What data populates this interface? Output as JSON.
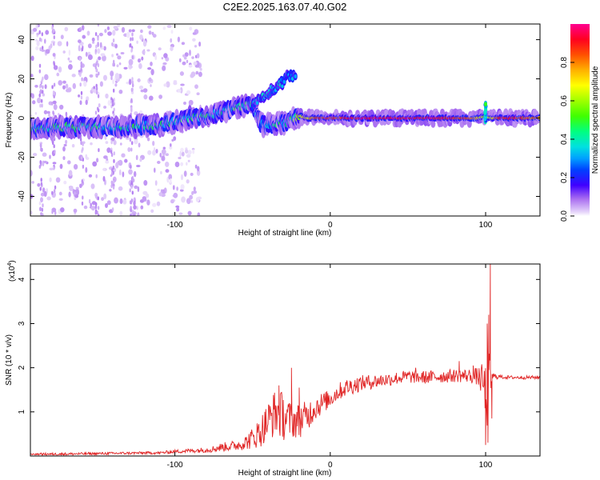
{
  "figure": {
    "title": "C2E2.2025.163.07.40.G02"
  },
  "chart_data": [
    {
      "type": "heatmap",
      "xlabel": "Height of straight line (km)",
      "ylabel": "Frequency (Hz)",
      "xlim": [
        -193,
        135
      ],
      "ylim": [
        -50,
        48
      ],
      "x_ticks": [
        -100,
        0,
        100
      ],
      "x_tick_labels": [
        "-100",
        "0",
        "100"
      ],
      "y_ticks": [
        -40,
        -20,
        0,
        20,
        40
      ],
      "y_tick_labels": [
        "-40",
        "-20",
        "0",
        "20",
        "40"
      ],
      "grid": false,
      "colorbar": {
        "label": "Normalized spectral amplitude",
        "range": [
          0,
          1
        ],
        "ticks": [
          0.0,
          0.2,
          0.4,
          0.6,
          0.8
        ],
        "tick_labels": [
          "0.0",
          "0.2",
          "0.4",
          "0.6",
          "0.8"
        ]
      },
      "ridge": {
        "x": [
          -193,
          -180,
          -160,
          -140,
          -120,
          -110,
          -100,
          -90,
          -80,
          -70,
          -62,
          -55,
          -50,
          -46,
          -43,
          -40,
          -36,
          -33,
          -30,
          -25,
          -22,
          -20,
          -15,
          -10,
          -5,
          0,
          10,
          20,
          40,
          60,
          80,
          90,
          96,
          100,
          104,
          110,
          120,
          135
        ],
        "y": [
          -5,
          -5,
          -4.5,
          -4.5,
          -4,
          -3.5,
          -2,
          0,
          1.5,
          3,
          5,
          6,
          7,
          -1,
          -4,
          -3,
          -3,
          -2,
          -3,
          -1,
          0,
          1,
          0,
          0,
          0,
          0,
          0,
          0,
          0,
          0,
          0,
          0,
          0,
          1,
          0,
          0,
          0,
          0
        ],
        "amplitude": [
          0.45,
          0.5,
          0.5,
          0.45,
          0.45,
          0.5,
          0.4,
          0.45,
          0.5,
          0.45,
          0.45,
          0.5,
          0.45,
          0.35,
          0.3,
          0.35,
          0.4,
          0.45,
          0.45,
          0.55,
          0.6,
          0.7,
          0.7,
          0.85,
          0.9,
          0.85,
          0.9,
          0.95,
          0.95,
          0.95,
          0.9,
          0.85,
          0.7,
          0.6,
          0.7,
          0.9,
          0.9,
          0.8
        ]
      },
      "branch": {
        "x": [
          -50,
          -46,
          -42,
          -38,
          -35,
          -32,
          -30,
          -28,
          -26,
          -24,
          -22
        ],
        "y": [
          7,
          10,
          12,
          14,
          14,
          18,
          18,
          21,
          22,
          22,
          23
        ],
        "amplitude": [
          0.3,
          0.3,
          0.35,
          0.3,
          0.3,
          0.35,
          0.3,
          0.3,
          0.35,
          0.3,
          0.3
        ]
      },
      "spike": {
        "x": 100,
        "y_range": [
          -2,
          8
        ],
        "amplitude": 0.5
      }
    },
    {
      "type": "line",
      "xlabel": "Height of straight line (km)",
      "ylabel": "SNR (10 * v/v)",
      "y_multiplier": "(x10",
      "y_multiplier_exp": "4",
      "y_multiplier_close": ")",
      "xlim": [
        -193,
        135
      ],
      "ylim": [
        0,
        4.35
      ],
      "x_ticks": [
        -100,
        0,
        100
      ],
      "x_tick_labels": [
        "-100",
        "0",
        "100"
      ],
      "y_ticks": [
        1,
        2,
        3,
        4
      ],
      "y_tick_labels": [
        "1",
        "2",
        "3",
        "4"
      ],
      "grid": false,
      "series": [
        {
          "color": "#e02525",
          "x": [
            -193,
            -180,
            -160,
            -140,
            -120,
            -110,
            -100,
            -90,
            -80,
            -75,
            -70,
            -60,
            -55,
            -50,
            -45,
            -40,
            -35,
            -30,
            -25,
            -20,
            -15,
            -10,
            -5,
            0,
            5,
            10,
            20,
            30,
            40,
            50,
            60,
            70,
            80,
            90,
            95,
            98,
            100,
            102,
            104,
            108,
            115,
            125,
            135
          ],
          "y": [
            0.04,
            0.04,
            0.05,
            0.06,
            0.07,
            0.07,
            0.1,
            0.12,
            0.14,
            0.16,
            0.2,
            0.24,
            0.3,
            0.4,
            0.55,
            0.8,
            1.0,
            0.9,
            0.8,
            0.8,
            0.9,
            1.1,
            1.2,
            1.3,
            1.45,
            1.55,
            1.65,
            1.7,
            1.75,
            1.8,
            1.78,
            1.8,
            1.82,
            1.82,
            1.8,
            1.7,
            1.4,
            1.5,
            1.8,
            1.8,
            1.78,
            1.78,
            1.78
          ],
          "noise": [
            0.03,
            0.03,
            0.03,
            0.03,
            0.03,
            0.03,
            0.04,
            0.05,
            0.06,
            0.08,
            0.1,
            0.12,
            0.16,
            0.25,
            0.35,
            0.45,
            0.55,
            0.55,
            0.4,
            0.4,
            0.35,
            0.3,
            0.25,
            0.2,
            0.2,
            0.2,
            0.18,
            0.16,
            0.15,
            0.15,
            0.15,
            0.15,
            0.15,
            0.16,
            0.2,
            0.4,
            0.7,
            1.0,
            0.1,
            0.05,
            0.04,
            0.04,
            0.04
          ],
          "peaks": [
            {
              "x": -25,
              "y": 2.0
            },
            {
              "x": -33,
              "y": 1.6
            },
            {
              "x": -20,
              "y": 1.55
            },
            {
              "x": 101,
              "y": 3.0
            },
            {
              "x": 102,
              "y": 3.2
            },
            {
              "x": 103,
              "y": 4.35
            },
            {
              "x": 100,
              "y": 0.25
            },
            {
              "x": 101.5,
              "y": 0.3
            },
            {
              "x": 104,
              "y": 0.85
            },
            {
              "x": 83,
              "y": 2.15
            },
            {
              "x": 92,
              "y": 2.05
            },
            {
              "x": 55,
              "y": 2.0
            }
          ]
        }
      ]
    }
  ]
}
